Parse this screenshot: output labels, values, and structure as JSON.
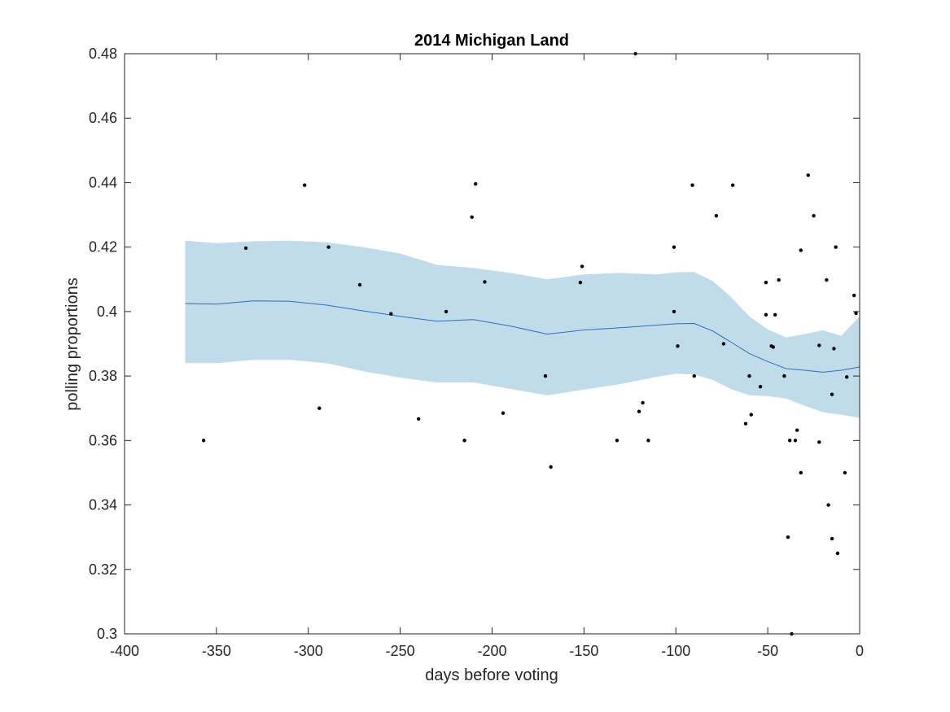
{
  "chart_data": {
    "type": "scatter",
    "title": "2014 Michigan Land",
    "xlabel": "days before voting",
    "ylabel": "polling proportions",
    "xlim": [
      -400,
      0
    ],
    "ylim": [
      0.3,
      0.48
    ],
    "xticks": [
      -400,
      -350,
      -300,
      -250,
      -200,
      -150,
      -100,
      -50,
      0
    ],
    "yticks": [
      0.3,
      0.32,
      0.34,
      0.36,
      0.38,
      0.4,
      0.42,
      0.44,
      0.46,
      0.48
    ],
    "xtick_labels": [
      "-400",
      "-350",
      "-300",
      "-250",
      "-200",
      "-150",
      "-100",
      "-50",
      "0"
    ],
    "ytick_labels": [
      "0.3",
      "0.32",
      "0.34",
      "0.36",
      "0.38",
      "0.4",
      "0.42",
      "0.44",
      "0.46",
      "0.48"
    ],
    "grid": false,
    "colors": {
      "band": "#c0dceb",
      "line": "#2f6fb7",
      "points": "#000000",
      "axes": "#262626"
    },
    "trend": {
      "x": [
        -367,
        -350,
        -330,
        -310,
        -290,
        -270,
        -250,
        -230,
        -210,
        -190,
        -170,
        -150,
        -130,
        -110,
        -100,
        -90,
        -80,
        -70,
        -60,
        -50,
        -40,
        -30,
        -20,
        -10,
        0
      ],
      "mean": [
        0.4025,
        0.4023,
        0.4033,
        0.4032,
        0.402,
        0.4002,
        0.3985,
        0.397,
        0.3975,
        0.3955,
        0.393,
        0.3943,
        0.395,
        0.3958,
        0.3962,
        0.3963,
        0.394,
        0.3905,
        0.387,
        0.3845,
        0.3823,
        0.3818,
        0.3812,
        0.3818,
        0.3828
      ],
      "upper": [
        0.422,
        0.4212,
        0.4218,
        0.422,
        0.4215,
        0.42,
        0.418,
        0.4145,
        0.4135,
        0.412,
        0.41,
        0.4115,
        0.412,
        0.4115,
        0.4122,
        0.4123,
        0.4095,
        0.4045,
        0.3985,
        0.3945,
        0.392,
        0.393,
        0.3942,
        0.3925,
        0.3985
      ],
      "lower": [
        0.384,
        0.384,
        0.385,
        0.385,
        0.384,
        0.3815,
        0.3795,
        0.378,
        0.378,
        0.376,
        0.374,
        0.3758,
        0.3775,
        0.3798,
        0.3807,
        0.3805,
        0.3788,
        0.376,
        0.374,
        0.3738,
        0.373,
        0.3708,
        0.3688,
        0.368,
        0.367
      ]
    },
    "points": [
      [
        -357,
        0.36
      ],
      [
        -334,
        0.4197
      ],
      [
        -302,
        0.4392
      ],
      [
        -294,
        0.37
      ],
      [
        -289,
        0.42
      ],
      [
        -272,
        0.4083
      ],
      [
        -255,
        0.3993
      ],
      [
        -240,
        0.3667
      ],
      [
        -225,
        0.4
      ],
      [
        -215,
        0.36
      ],
      [
        -211,
        0.4293
      ],
      [
        -209,
        0.4396
      ],
      [
        -204,
        0.4092
      ],
      [
        -194,
        0.3685
      ],
      [
        -171,
        0.38
      ],
      [
        -168,
        0.3518
      ],
      [
        -152,
        0.409
      ],
      [
        -151,
        0.414
      ],
      [
        -132,
        0.36
      ],
      [
        -122,
        0.48
      ],
      [
        -120,
        0.369
      ],
      [
        -118,
        0.3717
      ],
      [
        -115,
        0.36
      ],
      [
        -101,
        0.4
      ],
      [
        -101,
        0.42
      ],
      [
        -99,
        0.3893
      ],
      [
        -91,
        0.4392
      ],
      [
        -90,
        0.38
      ],
      [
        -78,
        0.4297
      ],
      [
        -74,
        0.39
      ],
      [
        -69,
        0.4392
      ],
      [
        -62,
        0.3652
      ],
      [
        -60,
        0.38
      ],
      [
        -59,
        0.368
      ],
      [
        -54,
        0.3767
      ],
      [
        -51,
        0.409
      ],
      [
        -51,
        0.399
      ],
      [
        -48,
        0.3893
      ],
      [
        -47,
        0.389
      ],
      [
        -46,
        0.399
      ],
      [
        -44,
        0.4098
      ],
      [
        -41,
        0.38
      ],
      [
        -39,
        0.33
      ],
      [
        -38,
        0.36
      ],
      [
        -37,
        0.3
      ],
      [
        -35,
        0.36
      ],
      [
        -34,
        0.3632
      ],
      [
        -32,
        0.419
      ],
      [
        -32,
        0.35
      ],
      [
        -28,
        0.4423
      ],
      [
        -25,
        0.4297
      ],
      [
        -22,
        0.3895
      ],
      [
        -22,
        0.3595
      ],
      [
        -18,
        0.4098
      ],
      [
        -17,
        0.34
      ],
      [
        -15,
        0.3295
      ],
      [
        -15,
        0.3743
      ],
      [
        -14,
        0.3885
      ],
      [
        -13,
        0.42
      ],
      [
        -12,
        0.325
      ],
      [
        -8,
        0.35
      ],
      [
        -7,
        0.3797
      ],
      [
        -3,
        0.405
      ],
      [
        -2,
        0.3995
      ]
    ]
  }
}
